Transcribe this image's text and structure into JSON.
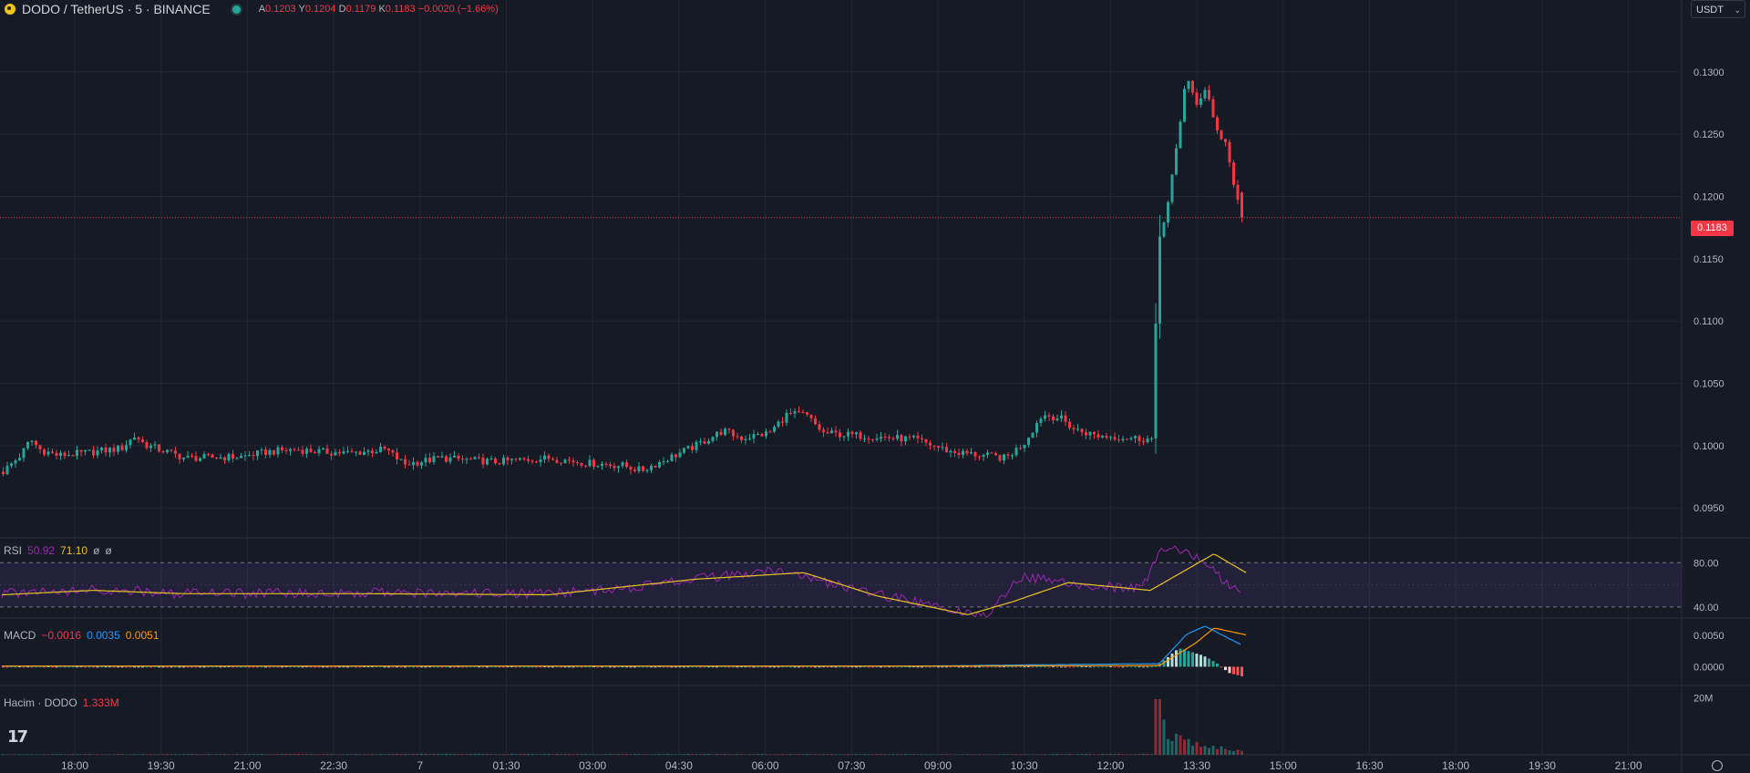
{
  "header": {
    "symbol_title": "DODO / TetherUS · 5 · BINANCE",
    "ohlc": {
      "a_label": "A",
      "a_value": "0.1203",
      "y_label": "Y",
      "y_value": "0.1204",
      "d_label": "D",
      "d_value": "0.1179",
      "k_label": "K",
      "k_value": "0.1183",
      "change": "−0.0020 (−1.66%)"
    },
    "currency": "USDT"
  },
  "current_price": "0.1183",
  "rsi_legend": {
    "name": "RSI",
    "v1": "50.92",
    "v2": "71.10",
    "v3": "ø",
    "v4": "ø"
  },
  "macd_legend": {
    "name": "MACD",
    "v1": "−0.0016",
    "v2": "0.0035",
    "v3": "0.0051"
  },
  "volume_legend": {
    "name": "Hacim · DODO",
    "value": "1.333M"
  },
  "colors": {
    "up": "#26a69a",
    "down": "#f23645",
    "rsi": "#9c27b0",
    "rsi_ma": "#e7c321",
    "macd": "#2196f3",
    "signal": "#ff9800",
    "background": "#161a25",
    "grid": "#232733"
  },
  "chart_data": {
    "type": "candlestick",
    "x_tick_labels": [
      "18:00",
      "19:30",
      "21:00",
      "22:30",
      "7",
      "01:30",
      "03:00",
      "04:30",
      "06:00",
      "07:30",
      "09:00",
      "10:30",
      "12:00",
      "13:30",
      "15:00",
      "16:30",
      "18:00",
      "19:30",
      "21:00"
    ],
    "price_ticks": [
      "0.1300",
      "0.1250",
      "0.1200",
      "0.1150",
      "0.1100",
      "0.1050",
      "0.1000",
      "0.0950"
    ],
    "ylim": [
      0.0926,
      0.1343
    ],
    "price_anchors": [
      [
        0,
        0.0979
      ],
      [
        20,
        0.0993
      ],
      [
        30,
        0.1005
      ],
      [
        40,
        0.0997
      ],
      [
        60,
        0.0992
      ],
      [
        100,
        0.0995
      ],
      [
        130,
        0.0998
      ],
      [
        145,
        0.1008
      ],
      [
        155,
        0.1001
      ],
      [
        200,
        0.099
      ],
      [
        260,
        0.0991
      ],
      [
        290,
        0.0995
      ],
      [
        320,
        0.0997
      ],
      [
        350,
        0.0995
      ],
      [
        380,
        0.0994
      ],
      [
        420,
        0.0997
      ],
      [
        440,
        0.0985
      ],
      [
        480,
        0.099
      ],
      [
        540,
        0.0987
      ],
      [
        600,
        0.099
      ],
      [
        640,
        0.0986
      ],
      [
        680,
        0.0984
      ],
      [
        700,
        0.098
      ],
      [
        730,
        0.099
      ],
      [
        760,
        0.1
      ],
      [
        790,
        0.1012
      ],
      [
        810,
        0.1006
      ],
      [
        840,
        0.101
      ],
      [
        860,
        0.1025
      ],
      [
        880,
        0.1025
      ],
      [
        900,
        0.101
      ],
      [
        960,
        0.1007
      ],
      [
        1000,
        0.1005
      ],
      [
        1040,
        0.0995
      ],
      [
        1100,
        0.099
      ],
      [
        1120,
        0.1002
      ],
      [
        1140,
        0.1025
      ],
      [
        1160,
        0.1022
      ],
      [
        1175,
        0.1013
      ],
      [
        1200,
        0.1008
      ],
      [
        1260,
        0.1005
      ],
      [
        1268,
        0.1165
      ],
      [
        1278,
        0.1195
      ],
      [
        1290,
        0.125
      ],
      [
        1298,
        0.13
      ],
      [
        1310,
        0.127
      ],
      [
        1320,
        0.129
      ],
      [
        1330,
        0.1255
      ],
      [
        1343,
        0.124
      ],
      [
        1352,
        0.12
      ],
      [
        1360,
        0.1183
      ]
    ],
    "candle_step_px": 4.5,
    "last_candle": {
      "open": 0.1203,
      "high": 0.1204,
      "low": 0.1179,
      "close": 0.1183
    },
    "rsi": {
      "levels": [
        80,
        40
      ],
      "ticks": [
        "80.00",
        "40.00"
      ],
      "ylim": [
        30,
        100
      ],
      "value_anchors": [
        [
          0,
          52
        ],
        [
          100,
          56
        ],
        [
          200,
          52
        ],
        [
          400,
          53
        ],
        [
          600,
          52
        ],
        [
          700,
          58
        ],
        [
          760,
          66
        ],
        [
          850,
          72
        ],
        [
          940,
          55
        ],
        [
          1040,
          38
        ],
        [
          1080,
          34
        ],
        [
          1120,
          68
        ],
        [
          1180,
          60
        ],
        [
          1250,
          56
        ],
        [
          1270,
          90
        ],
        [
          1300,
          92
        ],
        [
          1330,
          72
        ],
        [
          1360,
          51
        ]
      ],
      "ma_anchors": [
        [
          0,
          51
        ],
        [
          100,
          55
        ],
        [
          200,
          52
        ],
        [
          400,
          52
        ],
        [
          600,
          51
        ],
        [
          760,
          65
        ],
        [
          880,
          71
        ],
        [
          960,
          50
        ],
        [
          1060,
          33
        ],
        [
          1110,
          45
        ],
        [
          1170,
          62
        ],
        [
          1260,
          55
        ],
        [
          1330,
          88
        ],
        [
          1365,
          71
        ]
      ]
    },
    "macd": {
      "ticks": [
        "0.0050",
        "0.0000"
      ],
      "ylim": [
        -0.003,
        0.0075
      ],
      "macd_anchors": [
        [
          0,
          0.0001
        ],
        [
          1000,
          0.0001
        ],
        [
          1270,
          0.0005
        ],
        [
          1300,
          0.0052
        ],
        [
          1320,
          0.0065
        ],
        [
          1360,
          0.0035
        ]
      ],
      "signal_anchors": [
        [
          0,
          0.0001
        ],
        [
          1000,
          0.0001
        ],
        [
          1270,
          0.0002
        ],
        [
          1310,
          0.0038
        ],
        [
          1330,
          0.0062
        ],
        [
          1365,
          0.0051
        ]
      ],
      "hist_anchors": [
        [
          0,
          0.0
        ],
        [
          1262,
          0.0
        ],
        [
          1270,
          0.0006
        ],
        [
          1290,
          0.003
        ],
        [
          1320,
          0.0016
        ],
        [
          1335,
          0.0002
        ],
        [
          1345,
          -0.001
        ],
        [
          1362,
          -0.0016
        ]
      ]
    },
    "volume": {
      "ticks": [
        "20M"
      ],
      "ylim": [
        0,
        23
      ],
      "value_anchors": [
        [
          0,
          0.2
        ],
        [
          500,
          0.3
        ],
        [
          1100,
          0.2
        ],
        [
          1262,
          0.3
        ],
        [
          1268,
          19.5
        ],
        [
          1275,
          9
        ],
        [
          1285,
          7
        ],
        [
          1300,
          5
        ],
        [
          1320,
          3.5
        ],
        [
          1340,
          2.5
        ],
        [
          1360,
          1.3
        ]
      ]
    }
  }
}
